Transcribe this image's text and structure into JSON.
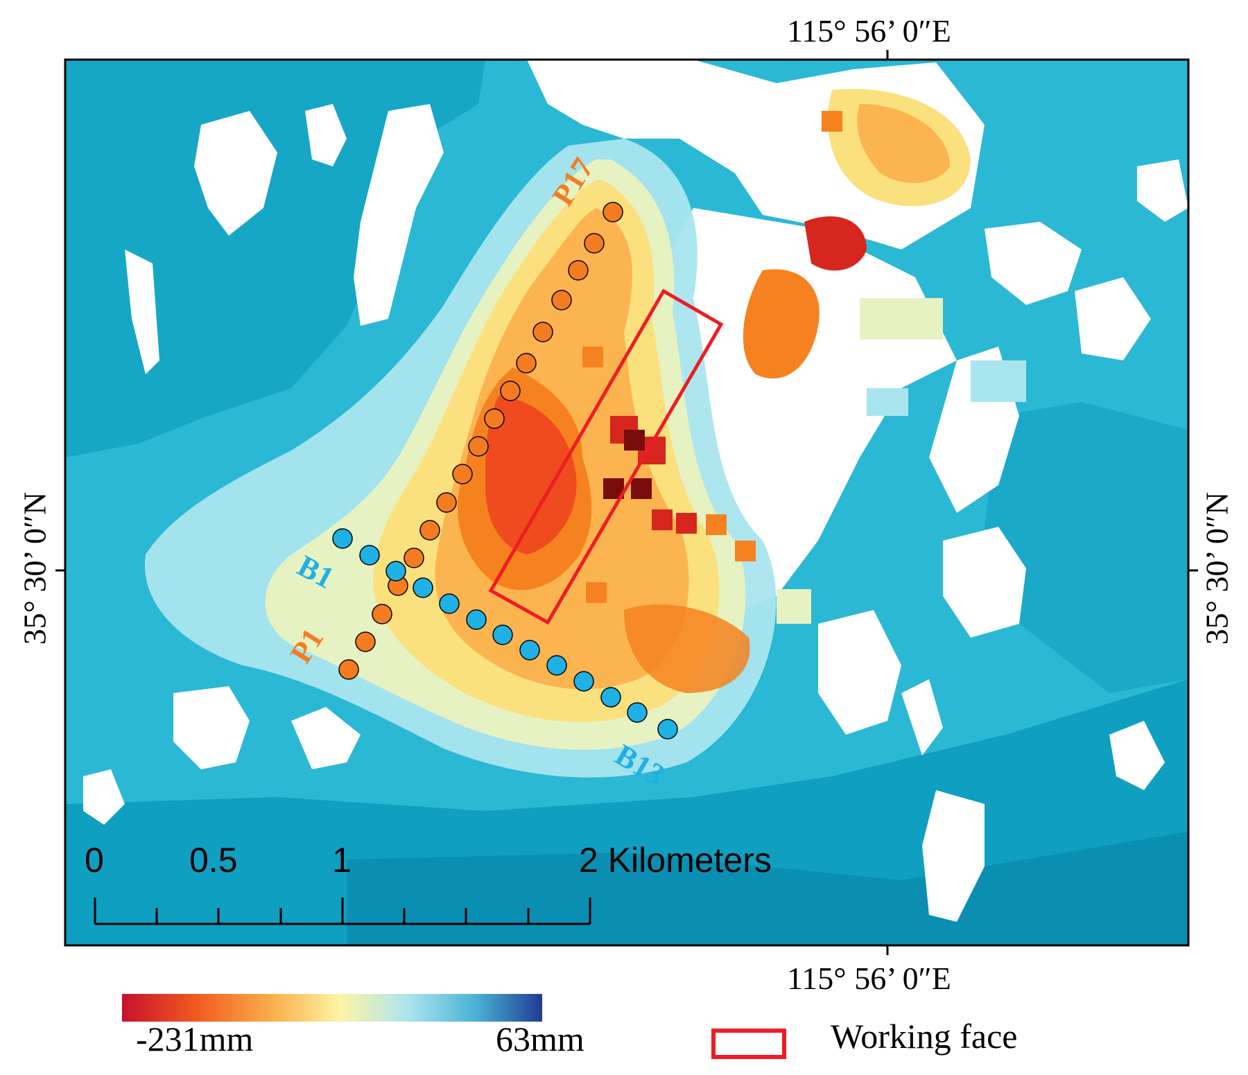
{
  "coordinates": {
    "lon_top": "115°  56’ 0″E",
    "lon_bottom": "115°  56’ 0″E",
    "lat_left": "35°  30’ 0″N",
    "lat_right": "35°  30’ 0″N"
  },
  "scale_bar": {
    "labels": [
      "0",
      "0.5",
      "1",
      "2 Kilometers"
    ]
  },
  "profiles": {
    "orange_start": "P1",
    "orange_end": "P17",
    "blue_start": "B1",
    "blue_end": "B13",
    "orange_color": "#f47c20",
    "blue_color": "#1fb0e6"
  },
  "legend": {
    "min_label": "-231mm",
    "max_label": "63mm",
    "working_face_label": "Working face",
    "working_face_color": "#ee1c24",
    "colorbar_stops": [
      "#c8102e",
      "#f25c1f",
      "#fbb04c",
      "#fdf5a6",
      "#aee4ee",
      "#4ab3d6",
      "#1f3c93"
    ]
  },
  "map_colors": {
    "background": "#2ab8d4",
    "deep_blue": "#0a97bb",
    "light_blue": "#a9e5ee",
    "pale_yellow": "#e6f2c2",
    "yellow": "#fbe07e",
    "orange_light": "#fbb450",
    "orange": "#f5821f",
    "red_orange": "#ef4b1e",
    "red": "#d7261e",
    "dark_red": "#7a0c0c",
    "white": "#ffffff"
  }
}
